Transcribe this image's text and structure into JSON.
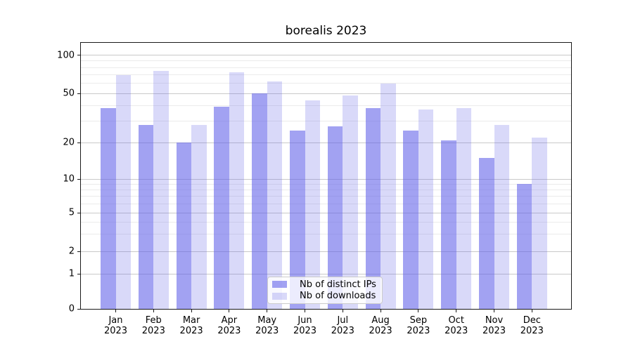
{
  "chart_data": {
    "type": "bar",
    "title": "borealis 2023",
    "categories": [
      "Jan",
      "Feb",
      "Mar",
      "Apr",
      "May",
      "Jun",
      "Jul",
      "Aug",
      "Sep",
      "Oct",
      "Nov",
      "Dec"
    ],
    "year_label": "2023",
    "series": [
      {
        "name": "Nb of distinct IPs",
        "color": "rgba(95,95,232,0.58)",
        "values": [
          38,
          28,
          20,
          39,
          50,
          25,
          27,
          38,
          25,
          21,
          15,
          9
        ]
      },
      {
        "name": "Nb of downloads",
        "color": "rgba(95,95,232,0.24)",
        "values": [
          70,
          75,
          28,
          73,
          62,
          44,
          48,
          60,
          37,
          38,
          28,
          22
        ]
      }
    ],
    "ylabel": "",
    "xlabel": "",
    "yticks": [
      0,
      1,
      2,
      5,
      10,
      20,
      50,
      100
    ],
    "minor_gridlines": [
      3,
      4,
      6,
      7,
      8,
      9,
      30,
      40,
      60,
      70,
      80,
      90
    ],
    "scale": "symlog",
    "scale_anchors": [
      [
        0,
        0
      ],
      [
        1,
        0.1319
      ],
      [
        2,
        0.2156
      ],
      [
        5,
        0.3606
      ],
      [
        10,
        0.4881
      ],
      [
        20,
        0.6246
      ],
      [
        50,
        0.8092
      ],
      [
        100,
        0.9538
      ]
    ],
    "ylim": [
      0,
      126
    ],
    "grid": "both",
    "legend_position": "lower center",
    "colors": {
      "bar_dark": "rgba(95,95,232,0.58)",
      "bar_light": "rgba(95,95,232,0.24)",
      "major_grid": "#c9c9c9",
      "minor_grid": "#ebebeb",
      "spine": "#1a1a1a",
      "text": "#000000"
    }
  }
}
